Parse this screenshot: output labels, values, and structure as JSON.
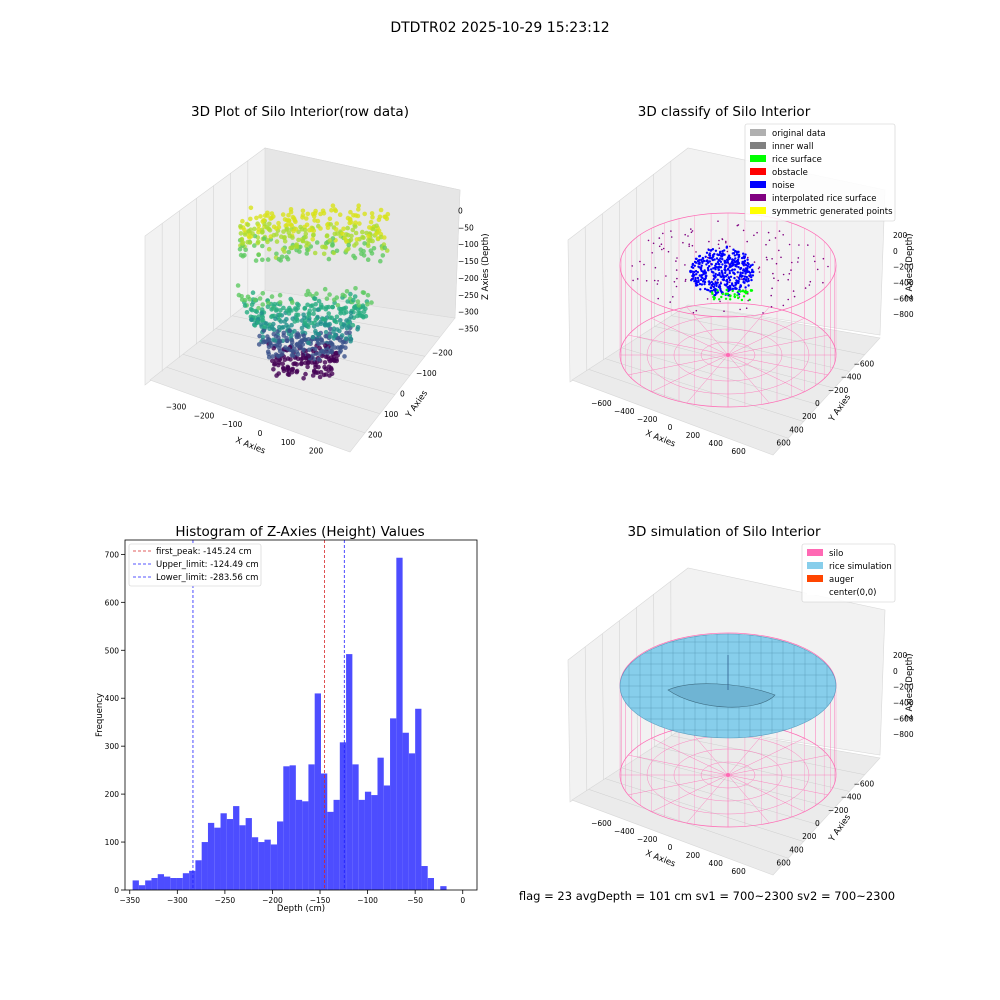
{
  "suptitle": "DTDTR02 2025-10-29 15:23:12",
  "footer": "flag = 23  avgDepth = 101 cm  sv1 = 700~2300  sv2 = 700~2300",
  "colors": {
    "bar": "#4d4dff",
    "red_line": "#d62728",
    "blue_line": "#1f1fff",
    "silo": "#ff69b4",
    "rice": "#87ceeb",
    "auger": "#ff4500",
    "noise": "#0000ff",
    "rice_surface": "#00ff00"
  },
  "chart_data": [
    {
      "type": "scatter",
      "title": "3D Plot of Silo Interior(row data)",
      "xlabel": "X Axies",
      "ylabel": "Y Axies",
      "zlabel": "Z Axies (Depth)",
      "x_ticks": [
        "−300",
        "−200",
        "−100",
        "0",
        "100",
        "200"
      ],
      "y_ticks": [
        "200",
        "100",
        "0",
        "−100",
        "−200"
      ],
      "z_ticks": [
        "0",
        "−50",
        "−100",
        "−150",
        "−200",
        "−250",
        "−300",
        "−350"
      ],
      "colormap": "viridis"
    },
    {
      "type": "scatter",
      "title": "3D classify of Silo Interior",
      "xlabel": "X Axies",
      "ylabel": "Y Axies",
      "zlabel": "Z Axies (Depth)",
      "x_ticks": [
        "−600",
        "−400",
        "−200",
        "0",
        "200",
        "400",
        "600"
      ],
      "y_ticks": [
        "600",
        "400",
        "200",
        "0",
        "−200",
        "−400",
        "−600"
      ],
      "z_ticks": [
        "200",
        "0",
        "−200",
        "−400",
        "−600",
        "−800"
      ],
      "legend": [
        {
          "name": "original data",
          "color": "#b0b0b0"
        },
        {
          "name": "inner wall",
          "color": "#808080"
        },
        {
          "name": "rice surface",
          "color": "#00ff00"
        },
        {
          "name": "obstacle",
          "color": "#ff0000"
        },
        {
          "name": "noise",
          "color": "#0000ff"
        },
        {
          "name": "interpolated rice surface",
          "color": "#800080"
        },
        {
          "name": "symmetric generated points",
          "color": "#ffff00"
        }
      ],
      "legend_position": "upper-right"
    },
    {
      "type": "bar",
      "title": "Histogram of Z-Axies (Height) Values",
      "xlabel": "Depth (cm)",
      "ylabel": "Frequency",
      "xlim": [
        -355,
        15
      ],
      "ylim": [
        0,
        730
      ],
      "x_ticks": [
        -350,
        -300,
        -250,
        -200,
        -150,
        -100,
        -50,
        0
      ],
      "x_tick_labels": [
        "−350",
        "−300",
        "−250",
        "−200",
        "−150",
        "−100",
        "−50",
        "0"
      ],
      "y_ticks": [
        0,
        100,
        200,
        300,
        400,
        500,
        600,
        700
      ],
      "y_tick_labels": [
        "0",
        "100",
        "200",
        "300",
        "400",
        "500",
        "600",
        "700"
      ],
      "bin_edges_start": -347,
      "bin_width": 6.6,
      "values": [
        20,
        10,
        20,
        25,
        33,
        28,
        25,
        25,
        35,
        40,
        62,
        100,
        140,
        130,
        160,
        148,
        175,
        135,
        150,
        110,
        100,
        105,
        95,
        143,
        258,
        260,
        188,
        185,
        262,
        410,
        243,
        163,
        188,
        308,
        492,
        262,
        188,
        205,
        198,
        276,
        218,
        358,
        693,
        328,
        285,
        378,
        50,
        25,
        0,
        8
      ],
      "vlines": [
        {
          "label": "first_peak: -145.24 cm",
          "x": -145.24,
          "color": "red"
        },
        {
          "label": "Upper_limit: -124.49 cm",
          "x": -124.49,
          "color": "blue"
        },
        {
          "label": "Lower_limit: -283.56 cm",
          "x": -283.56,
          "color": "blue"
        }
      ],
      "legend_position": "upper-left"
    },
    {
      "type": "surface",
      "title": "3D simulation of Silo Interior",
      "xlabel": "X Axies",
      "ylabel": "Y Axies",
      "zlabel": "Z Axies (Depth)",
      "x_ticks": [
        "−600",
        "−400",
        "−200",
        "0",
        "200",
        "400",
        "600"
      ],
      "y_ticks": [
        "600",
        "400",
        "200",
        "0",
        "−200",
        "−400",
        "−600"
      ],
      "z_ticks": [
        "200",
        "0",
        "−200",
        "−400",
        "−600",
        "−800"
      ],
      "legend": [
        {
          "name": "silo",
          "color": "#ff69b4"
        },
        {
          "name": "rice simulation",
          "color": "#87ceeb"
        },
        {
          "name": "auger",
          "color": "#ff4500"
        },
        {
          "name": "center(0,0)",
          "color": "#ffffff"
        }
      ],
      "legend_position": "upper-right"
    }
  ]
}
